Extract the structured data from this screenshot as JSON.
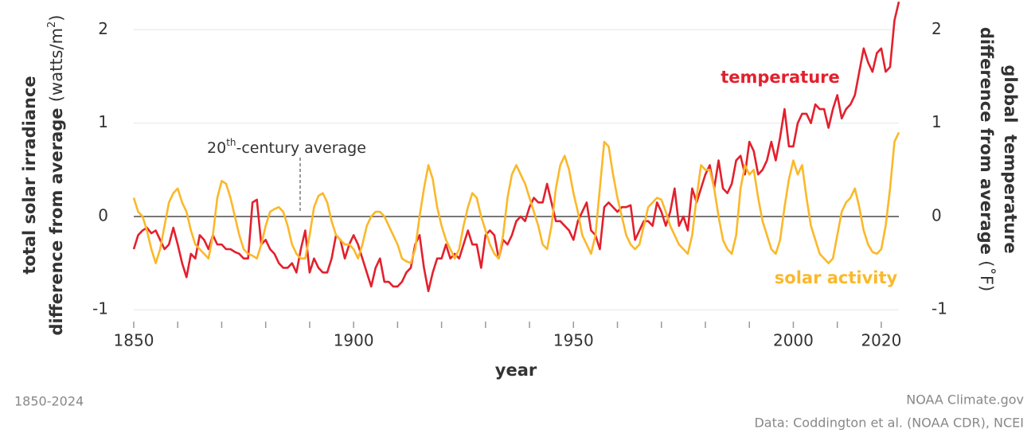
{
  "chart_data": {
    "type": "line",
    "x": [
      1850,
      1851,
      1852,
      1853,
      1854,
      1855,
      1856,
      1857,
      1858,
      1859,
      1860,
      1861,
      1862,
      1863,
      1864,
      1865,
      1866,
      1867,
      1868,
      1869,
      1870,
      1871,
      1872,
      1873,
      1874,
      1875,
      1876,
      1877,
      1878,
      1879,
      1880,
      1881,
      1882,
      1883,
      1884,
      1885,
      1886,
      1887,
      1888,
      1889,
      1890,
      1891,
      1892,
      1893,
      1894,
      1895,
      1896,
      1897,
      1898,
      1899,
      1900,
      1901,
      1902,
      1903,
      1904,
      1905,
      1906,
      1907,
      1908,
      1909,
      1910,
      1911,
      1912,
      1913,
      1914,
      1915,
      1916,
      1917,
      1918,
      1919,
      1920,
      1921,
      1922,
      1923,
      1924,
      1925,
      1926,
      1927,
      1928,
      1929,
      1930,
      1931,
      1932,
      1933,
      1934,
      1935,
      1936,
      1937,
      1938,
      1939,
      1940,
      1941,
      1942,
      1943,
      1944,
      1945,
      1946,
      1947,
      1948,
      1949,
      1950,
      1951,
      1952,
      1953,
      1954,
      1955,
      1956,
      1957,
      1958,
      1959,
      1960,
      1961,
      1962,
      1963,
      1964,
      1965,
      1966,
      1967,
      1968,
      1969,
      1970,
      1971,
      1972,
      1973,
      1974,
      1975,
      1976,
      1977,
      1978,
      1979,
      1980,
      1981,
      1982,
      1983,
      1984,
      1985,
      1986,
      1987,
      1988,
      1989,
      1990,
      1991,
      1992,
      1993,
      1994,
      1995,
      1996,
      1997,
      1998,
      1999,
      2000,
      2001,
      2002,
      2003,
      2004,
      2005,
      2006,
      2007,
      2008,
      2009,
      2010,
      2011,
      2012,
      2013,
      2014,
      2015,
      2016,
      2017,
      2018,
      2019,
      2020,
      2021,
      2022,
      2023,
      2024
    ],
    "series": [
      {
        "name": "temperature",
        "color": "#e3202d",
        "axis": "y2",
        "values": [
          -0.35,
          -0.2,
          -0.15,
          -0.12,
          -0.18,
          -0.15,
          -0.25,
          -0.35,
          -0.3,
          -0.12,
          -0.3,
          -0.5,
          -0.65,
          -0.4,
          -0.45,
          -0.2,
          -0.25,
          -0.35,
          -0.2,
          -0.3,
          -0.3,
          -0.35,
          -0.35,
          -0.38,
          -0.4,
          -0.45,
          -0.45,
          0.15,
          0.18,
          -0.3,
          -0.25,
          -0.35,
          -0.4,
          -0.5,
          -0.55,
          -0.55,
          -0.5,
          -0.6,
          -0.35,
          -0.15,
          -0.6,
          -0.45,
          -0.55,
          -0.6,
          -0.6,
          -0.45,
          -0.2,
          -0.25,
          -0.45,
          -0.3,
          -0.2,
          -0.3,
          -0.45,
          -0.6,
          -0.75,
          -0.55,
          -0.45,
          -0.7,
          -0.7,
          -0.75,
          -0.75,
          -0.7,
          -0.6,
          -0.55,
          -0.3,
          -0.2,
          -0.55,
          -0.8,
          -0.6,
          -0.45,
          -0.45,
          -0.3,
          -0.45,
          -0.4,
          -0.45,
          -0.3,
          -0.15,
          -0.3,
          -0.3,
          -0.55,
          -0.2,
          -0.15,
          -0.2,
          -0.45,
          -0.25,
          -0.3,
          -0.2,
          -0.05,
          0.0,
          -0.05,
          0.1,
          0.2,
          0.15,
          0.15,
          0.35,
          0.15,
          -0.05,
          -0.05,
          -0.1,
          -0.15,
          -0.25,
          -0.05,
          0.05,
          0.15,
          -0.15,
          -0.2,
          -0.35,
          0.1,
          0.15,
          0.1,
          0.05,
          0.1,
          0.1,
          0.12,
          -0.25,
          -0.15,
          -0.05,
          -0.05,
          -0.1,
          0.15,
          0.05,
          -0.1,
          0.05,
          0.3,
          -0.1,
          0.0,
          -0.15,
          0.3,
          0.15,
          0.3,
          0.45,
          0.55,
          0.3,
          0.6,
          0.3,
          0.25,
          0.35,
          0.6,
          0.65,
          0.45,
          0.8,
          0.7,
          0.45,
          0.5,
          0.6,
          0.8,
          0.6,
          0.85,
          1.15,
          0.75,
          0.75,
          1.0,
          1.1,
          1.1,
          1.0,
          1.2,
          1.15,
          1.15,
          0.95,
          1.15,
          1.3,
          1.05,
          1.15,
          1.2,
          1.3,
          1.55,
          1.8,
          1.65,
          1.55,
          1.75,
          1.8,
          1.55,
          1.6,
          2.1,
          2.3
        ]
      },
      {
        "name": "solar activity",
        "color": "#fbb829",
        "values": [
          0.2,
          0.05,
          0.0,
          -0.15,
          -0.35,
          -0.5,
          -0.35,
          -0.1,
          0.15,
          0.25,
          0.3,
          0.15,
          0.05,
          -0.15,
          -0.3,
          -0.35,
          -0.4,
          -0.45,
          -0.2,
          0.2,
          0.38,
          0.35,
          0.2,
          0.0,
          -0.2,
          -0.35,
          -0.4,
          -0.42,
          -0.45,
          -0.3,
          -0.1,
          0.05,
          0.08,
          0.1,
          0.05,
          -0.1,
          -0.3,
          -0.4,
          -0.45,
          -0.45,
          -0.2,
          0.1,
          0.22,
          0.25,
          0.15,
          -0.05,
          -0.2,
          -0.25,
          -0.3,
          -0.3,
          -0.35,
          -0.45,
          -0.3,
          -0.1,
          0.0,
          0.05,
          0.05,
          0.0,
          -0.1,
          -0.2,
          -0.3,
          -0.45,
          -0.48,
          -0.5,
          -0.35,
          0.0,
          0.3,
          0.55,
          0.4,
          0.1,
          -0.1,
          -0.25,
          -0.35,
          -0.45,
          -0.35,
          -0.1,
          0.1,
          0.25,
          0.2,
          0.0,
          -0.15,
          -0.3,
          -0.4,
          -0.45,
          -0.2,
          0.2,
          0.45,
          0.55,
          0.45,
          0.35,
          0.2,
          0.05,
          -0.1,
          -0.3,
          -0.35,
          -0.1,
          0.3,
          0.55,
          0.65,
          0.5,
          0.25,
          0.05,
          -0.2,
          -0.3,
          -0.4,
          -0.2,
          0.3,
          0.8,
          0.75,
          0.45,
          0.2,
          0.0,
          -0.2,
          -0.3,
          -0.35,
          -0.3,
          -0.1,
          0.1,
          0.15,
          0.2,
          0.18,
          0.05,
          -0.1,
          -0.2,
          -0.3,
          -0.35,
          -0.4,
          -0.2,
          0.2,
          0.55,
          0.5,
          0.5,
          0.3,
          0.0,
          -0.25,
          -0.35,
          -0.4,
          -0.2,
          0.3,
          0.55,
          0.45,
          0.5,
          0.2,
          -0.05,
          -0.2,
          -0.35,
          -0.4,
          -0.25,
          0.1,
          0.4,
          0.6,
          0.45,
          0.55,
          0.2,
          -0.1,
          -0.25,
          -0.4,
          -0.45,
          -0.5,
          -0.45,
          -0.2,
          0.05,
          0.15,
          0.2,
          0.3,
          0.1,
          -0.15,
          -0.3,
          -0.38,
          -0.4,
          -0.35,
          -0.1,
          0.3,
          0.8,
          0.9
        ]
      }
    ],
    "xlim": [
      1850,
      2024
    ],
    "xticks": [
      1850,
      1900,
      1950,
      2000,
      2020
    ],
    "xminorticks": [
      1860,
      1870,
      1880,
      1890,
      1910,
      1920,
      1930,
      1940,
      1960,
      1970,
      1980,
      1990,
      2010
    ],
    "ylim": [
      -1.16,
      2.31
    ],
    "yticks": [
      -1,
      0,
      1,
      2
    ],
    "y2lim": [
      -1.16,
      2.31
    ],
    "y2ticks": [
      -1,
      0,
      1,
      2
    ],
    "grid": true,
    "zero_line": true,
    "xlabel": "year",
    "ylabel": {
      "line1": "total solar irradiance",
      "line2": "difference from average",
      "unit": "(watts/m",
      "unit_sup": "2",
      "unit_end": ")"
    },
    "y2label": {
      "line1": "global  temperature",
      "line2": "difference from average",
      "unit": "(˚F)"
    },
    "annotation": {
      "text": "20",
      "sup": "th",
      "rest": "-century average"
    },
    "subtitle": "1850-2024",
    "credit": "NOAA Climate.gov",
    "source": "Data: Coddington et al. (NOAA CDR), NCEI"
  }
}
